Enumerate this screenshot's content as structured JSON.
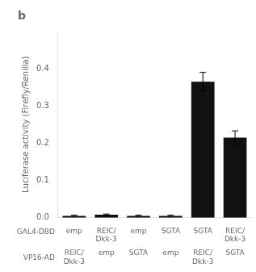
{
  "chart_data": {
    "type": "bar",
    "title": "b",
    "ylabel": "Luciferase activity (Firefly/Renilla)",
    "categories": [
      [
        "emp",
        "REIC/\nDkk-3"
      ],
      [
        "REIC/\nDkk-3",
        "emp"
      ],
      [
        "emp",
        "SGTA"
      ],
      [
        "SGTA",
        "emp"
      ],
      [
        "SGTA",
        "REIC/\nDkk-3"
      ],
      [
        "REIC/\nDkk-3",
        "SGTA"
      ]
    ],
    "annotations": [
      "GAL4-DBD",
      "VP16-AD"
    ],
    "values": [
      0.005,
      0.008,
      0.005,
      0.005,
      0.365,
      0.215
    ],
    "errors": [
      0.002,
      0.002,
      0.002,
      0.002,
      0.025,
      0.018
    ],
    "color": "#111111",
    "ylim": [
      0,
      0.5
    ],
    "yticks": [
      {
        "value": 0.0,
        "label": "0.0"
      },
      0.1,
      0.2,
      0.3,
      0.4
    ],
    "grid": false
  }
}
